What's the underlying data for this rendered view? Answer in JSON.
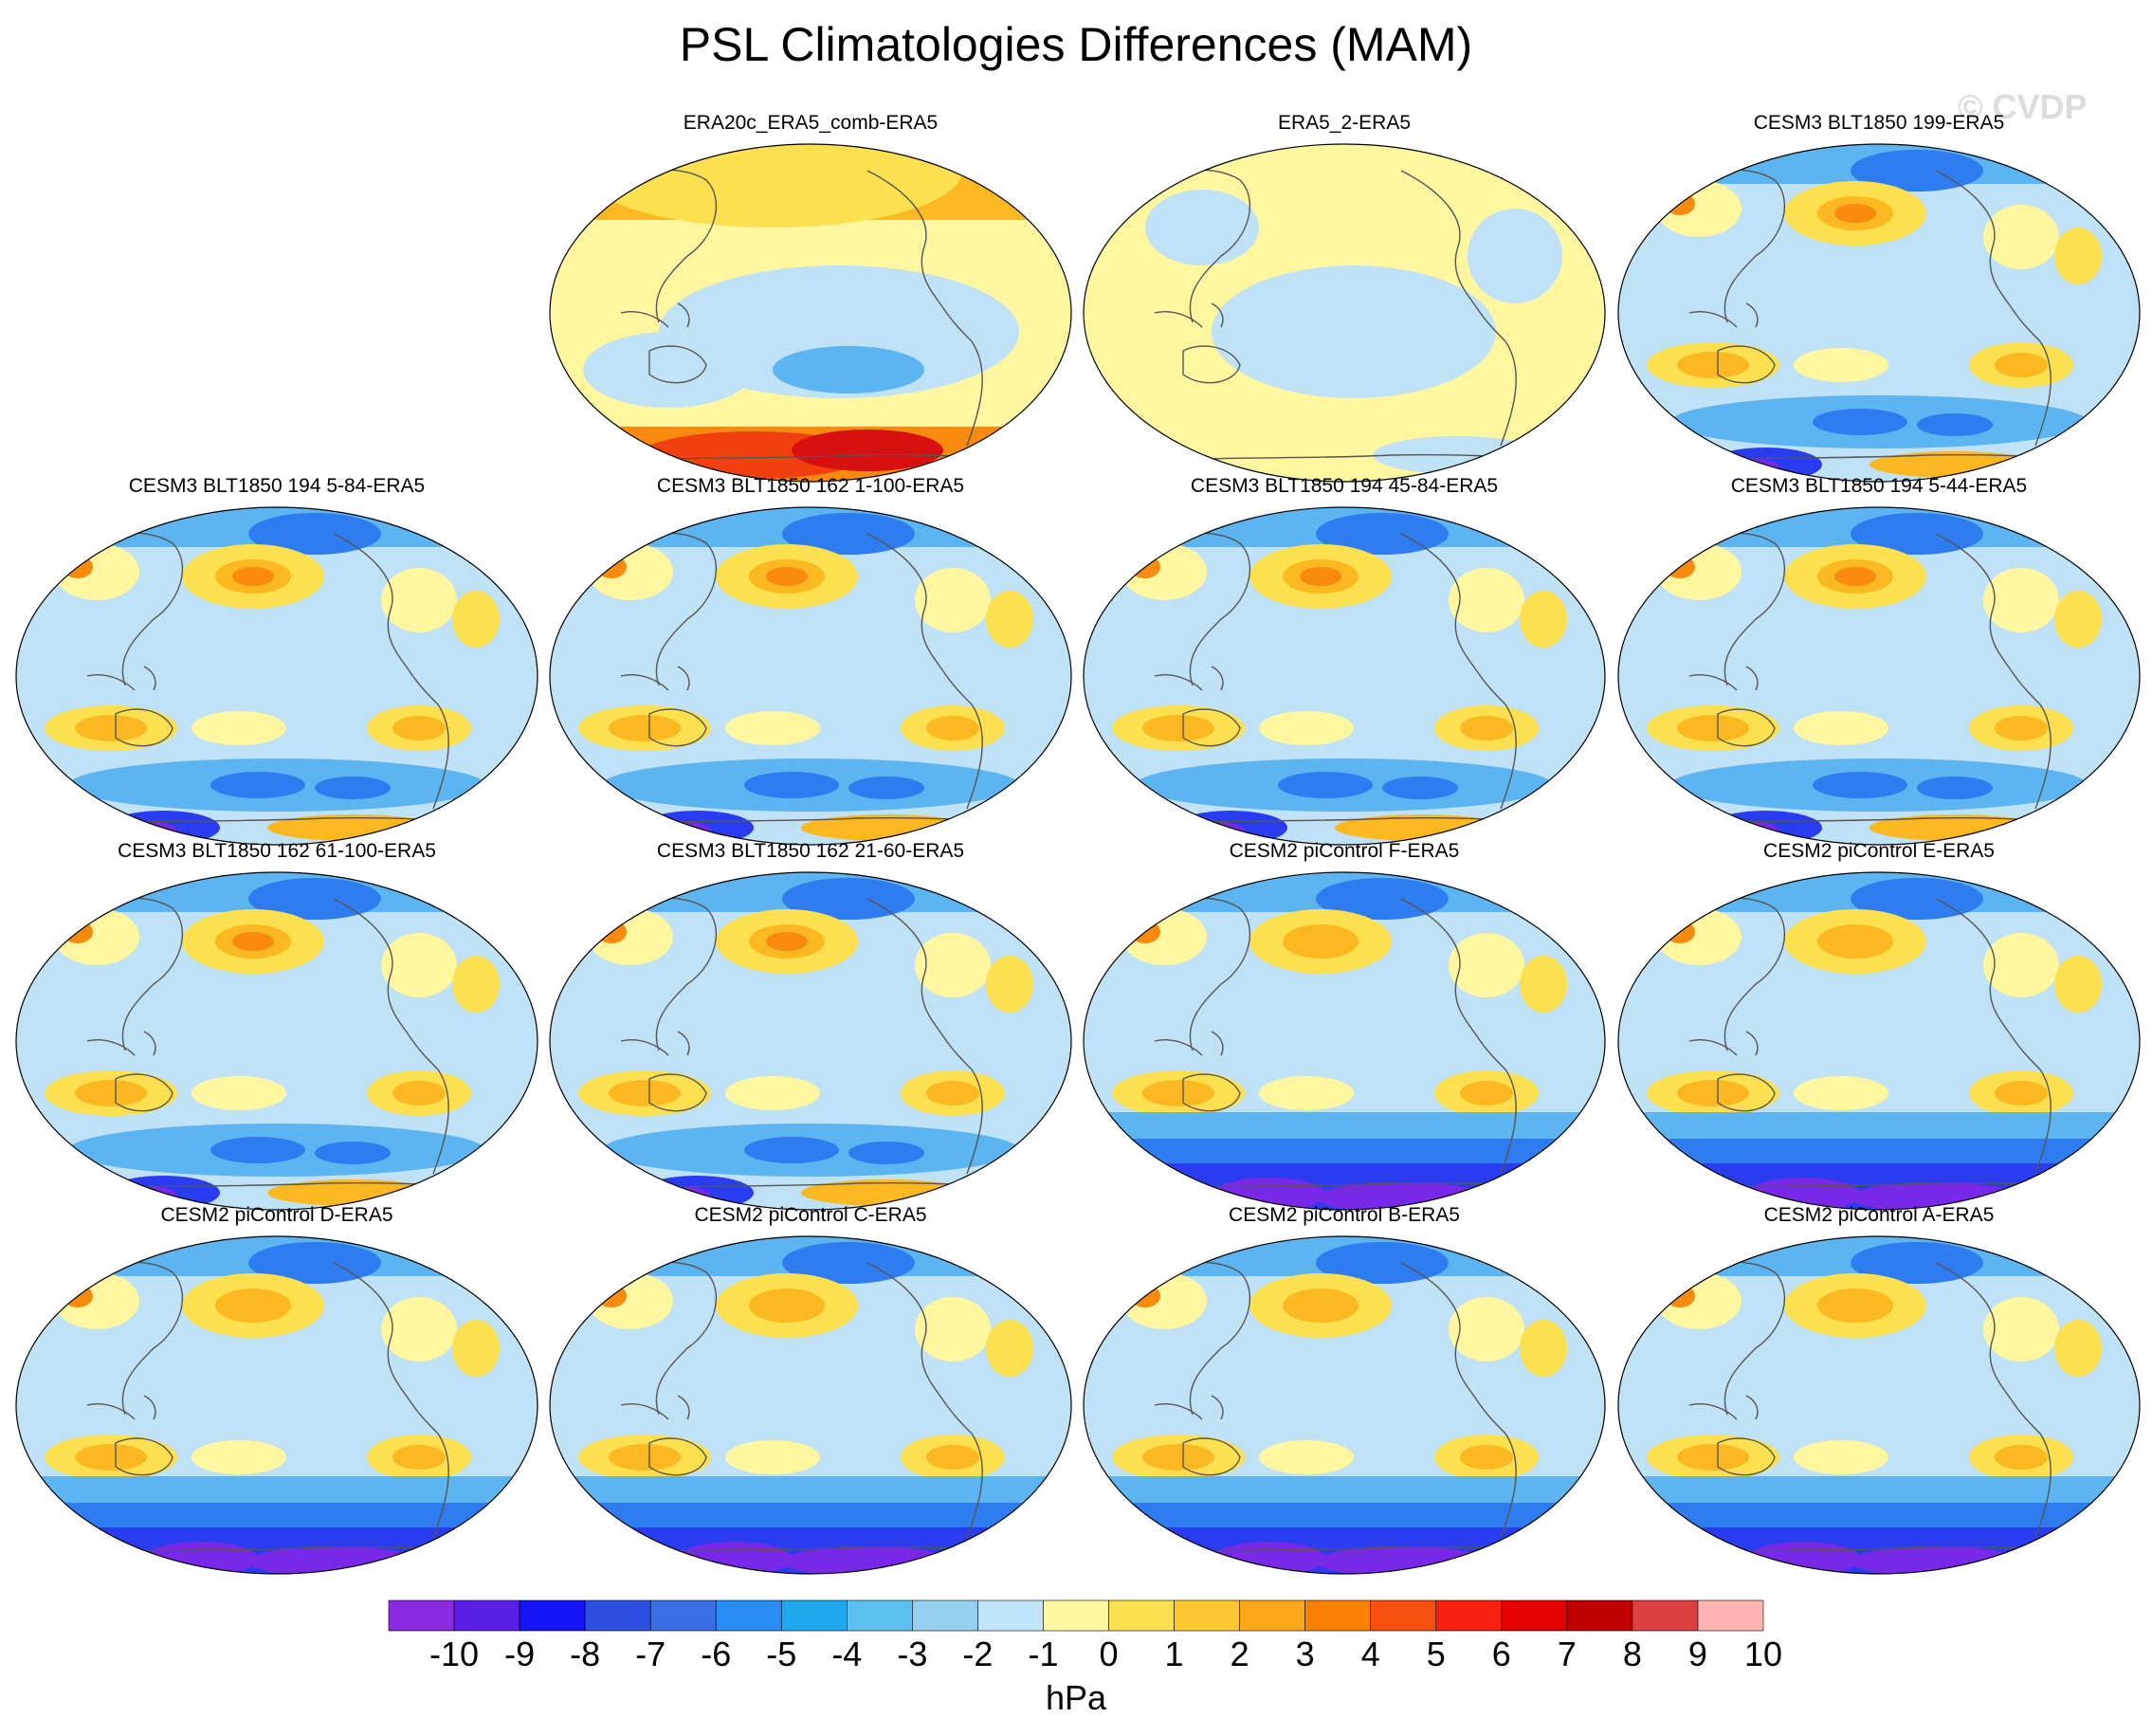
{
  "title": "PSL Climatologies Differences (MAM)",
  "watermark": "© CVDP",
  "panels": [
    {
      "label": "ERA20c_ERA5_comb-ERA5",
      "style": "era20c"
    },
    {
      "label": "ERA5_2-ERA5",
      "style": "era5"
    },
    {
      "label": "CESM3 BLT1850 199-ERA5",
      "style": "cesm3"
    },
    {
      "label": "CESM3 BLT1850 194 5-84-ERA5",
      "style": "cesm3"
    },
    {
      "label": "CESM3 BLT1850 162 1-100-ERA5",
      "style": "cesm3"
    },
    {
      "label": "CESM3 BLT1850 194 45-84-ERA5",
      "style": "cesm3"
    },
    {
      "label": "CESM3 BLT1850 194 5-44-ERA5",
      "style": "cesm3"
    },
    {
      "label": "CESM3 BLT1850 162 61-100-ERA5",
      "style": "cesm3"
    },
    {
      "label": "CESM3 BLT1850 162 21-60-ERA5",
      "style": "cesm3"
    },
    {
      "label": "CESM2 piControl F-ERA5",
      "style": "cesm2"
    },
    {
      "label": "CESM2 piControl E-ERA5",
      "style": "cesm2"
    },
    {
      "label": "CESM2 piControl D-ERA5",
      "style": "cesm2"
    },
    {
      "label": "CESM2 piControl C-ERA5",
      "style": "cesm2"
    },
    {
      "label": "CESM2 piControl B-ERA5",
      "style": "cesm2"
    },
    {
      "label": "CESM2 piControl A-ERA5",
      "style": "cesm2"
    }
  ],
  "colorbar": {
    "colors": [
      "#8a2be2",
      "#5a1ee6",
      "#1414f5",
      "#2e50e0",
      "#3a6ee6",
      "#2a8cf5",
      "#1fa8f0",
      "#5cc0f0",
      "#96d0f0",
      "#c0e4f8",
      "#fff8a0",
      "#fde050",
      "#fcc830",
      "#fca818",
      "#fa8000",
      "#f85010",
      "#f82010",
      "#e40000",
      "#c00000",
      "#dc4040",
      "#ffb4b4"
    ],
    "ticks": [
      "-10",
      "-9",
      "-8",
      "-7",
      "-6",
      "-5",
      "-4",
      "-3",
      "-2",
      "-1",
      "0",
      "1",
      "2",
      "3",
      "4",
      "5",
      "6",
      "7",
      "8",
      "9",
      "10"
    ],
    "units": "hPa"
  }
}
